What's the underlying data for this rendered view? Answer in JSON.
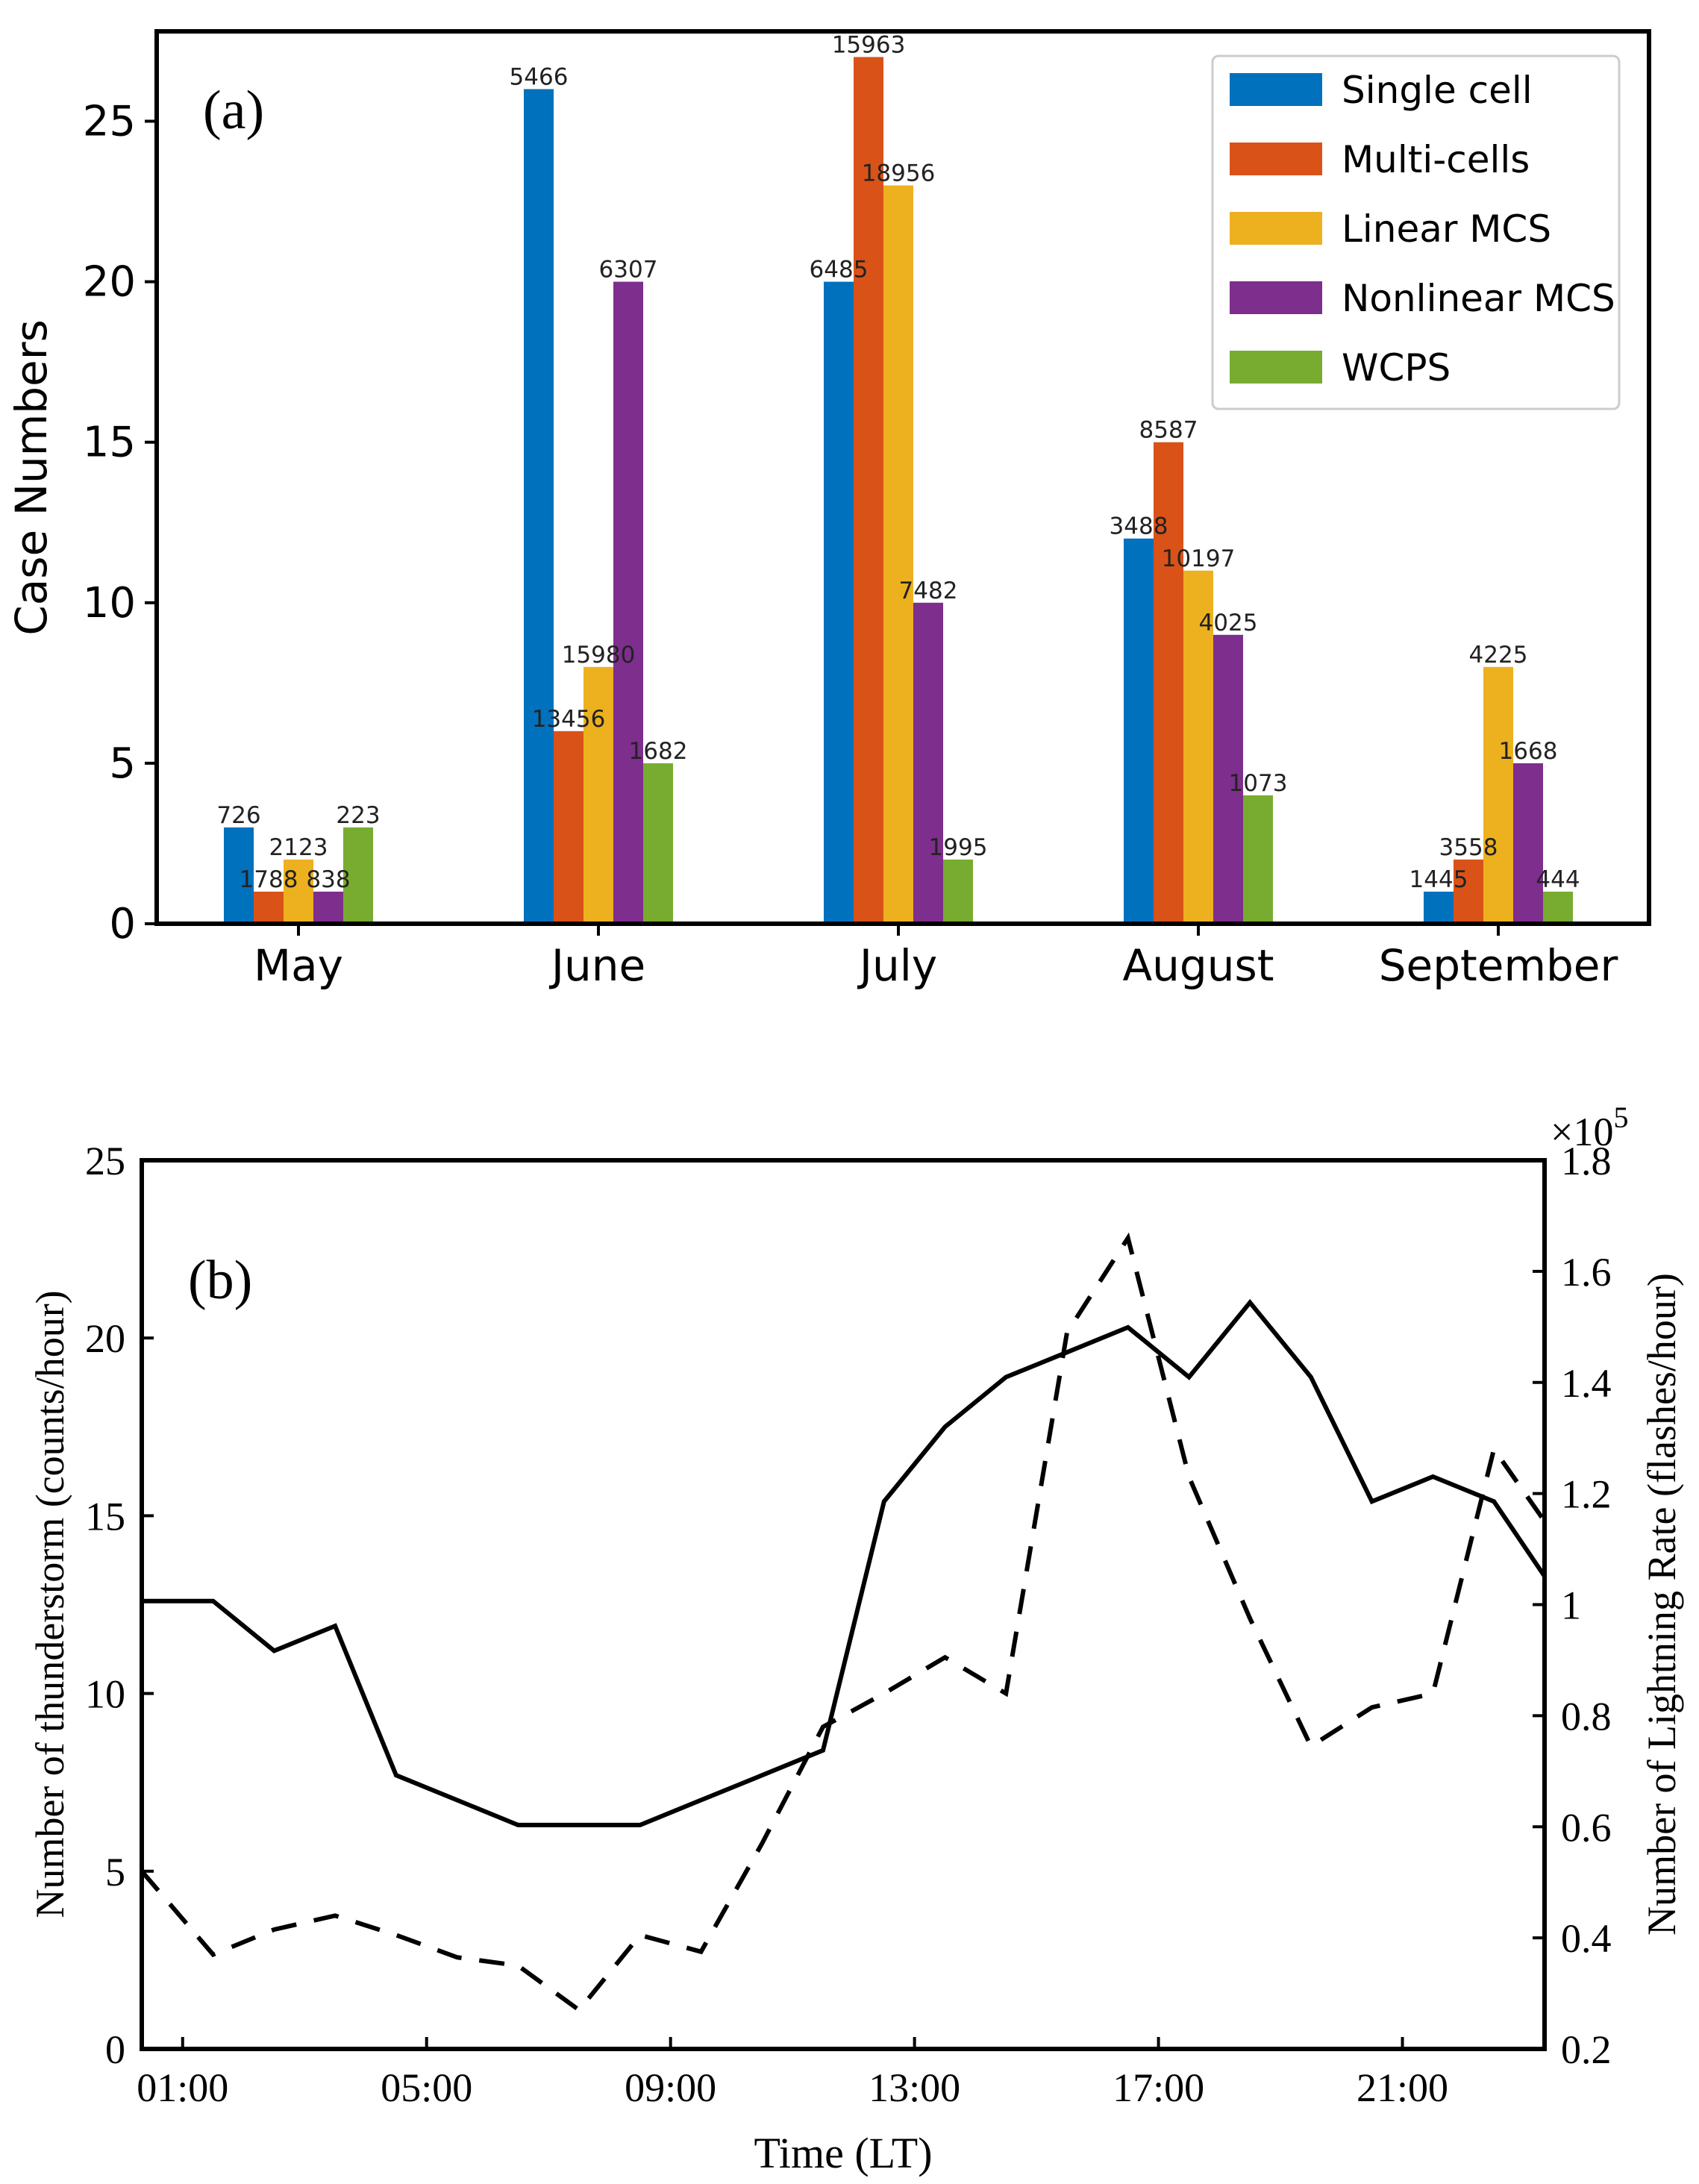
{
  "chart_data": [
    {
      "panel": "(a)",
      "type": "bar",
      "ylabel": "Case Numbers",
      "xlabel": "",
      "ylim": [
        0,
        27.8
      ],
      "yticks": [
        0,
        5,
        10,
        15,
        20,
        25
      ],
      "categories": [
        "May",
        "June",
        "July",
        "August",
        "September"
      ],
      "legend_position": "top-right",
      "series": [
        {
          "name": "Single cell",
          "color": "#0072BD",
          "values": [
            3,
            26,
            20,
            12,
            1
          ],
          "labels": [
            "726",
            "5466",
            "6485",
            "3488",
            "1445"
          ]
        },
        {
          "name": "Multi-cells",
          "color": "#D95319",
          "values": [
            1,
            6,
            27,
            15,
            2
          ],
          "labels": [
            "1788",
            "13456",
            "15963",
            "8587",
            "3558"
          ]
        },
        {
          "name": "Linear MCS",
          "color": "#EDB120",
          "values": [
            2,
            8,
            23,
            11,
            8
          ],
          "labels": [
            "2123",
            "15980",
            "18956",
            "10197",
            "4225"
          ]
        },
        {
          "name": "Nonlinear MCS",
          "color": "#7E2F8E",
          "values": [
            1,
            20,
            10,
            9,
            5
          ],
          "labels": [
            "838",
            "6307",
            "7482",
            "4025",
            "1668"
          ]
        },
        {
          "name": "WCPS",
          "color": "#77AC30",
          "values": [
            3,
            5,
            2,
            4,
            1
          ],
          "labels": [
            "223",
            "1682",
            "1995",
            "1073",
            "444"
          ]
        }
      ]
    },
    {
      "panel": "(b)",
      "type": "line",
      "xlabel": "Time (LT)",
      "ylabel": "Number of thunderstorm (counts/hour)",
      "ylabel_right": "Number of Lightning Rate (flashes/hour)",
      "right_multiplier": "×10",
      "right_multiplier_exp": "5",
      "xlim": [
        0.33,
        23.33
      ],
      "ylim": [
        0,
        25
      ],
      "ylim_right": [
        0.2,
        1.8
      ],
      "xtick_values": [
        1,
        5,
        9,
        13,
        17,
        21
      ],
      "xtick_labels": [
        "01:00",
        "05:00",
        "09:00",
        "13:00",
        "17:00",
        "21:00"
      ],
      "yticks": [
        0,
        5,
        10,
        15,
        20,
        25
      ],
      "yticks_right": [
        "0.2",
        "0.4",
        "0.6",
        "0.8",
        "1",
        "1.2",
        "1.4",
        "1.6",
        "1.8"
      ],
      "series": [
        {
          "name": "thunderstorm",
          "style": "solid",
          "axis": "left",
          "x": [
            0.33,
            1.5,
            2.5,
            3.5,
            4.5,
            5.5,
            6.5,
            7.5,
            8.5,
            9.5,
            10.5,
            11.5,
            12.5,
            13.5,
            14.5,
            15.5,
            16.5,
            17.5,
            18.5,
            19.5,
            20.5,
            21.5,
            22.5,
            23.33
          ],
          "y": [
            12.6,
            12.6,
            11.2,
            11.9,
            7.7,
            7.0,
            6.3,
            6.3,
            6.3,
            7.0,
            7.7,
            8.4,
            15.4,
            17.5,
            18.9,
            19.6,
            20.3,
            18.9,
            21.0,
            18.9,
            15.4,
            16.1,
            15.4,
            13.3
          ]
        },
        {
          "name": "lightning rate",
          "style": "dashed",
          "axis": "right",
          "x": [
            0.33,
            1.5,
            2.5,
            3.5,
            4.5,
            5.5,
            6.5,
            7.5,
            8.5,
            9.5,
            10.5,
            11.5,
            12.5,
            13.5,
            14.5,
            15.5,
            16.5,
            17.5,
            18.5,
            19.5,
            20.5,
            21.5,
            22.5,
            23.33
          ],
          "y": [
            0.52,
            0.37,
            0.415,
            0.44,
            0.405,
            0.365,
            0.35,
            0.27,
            0.405,
            0.375,
            0.57,
            0.78,
            0.84,
            0.905,
            0.84,
            1.49,
            1.66,
            1.23,
            0.975,
            0.745,
            0.815,
            0.84,
            1.28,
            1.15
          ]
        }
      ]
    }
  ]
}
